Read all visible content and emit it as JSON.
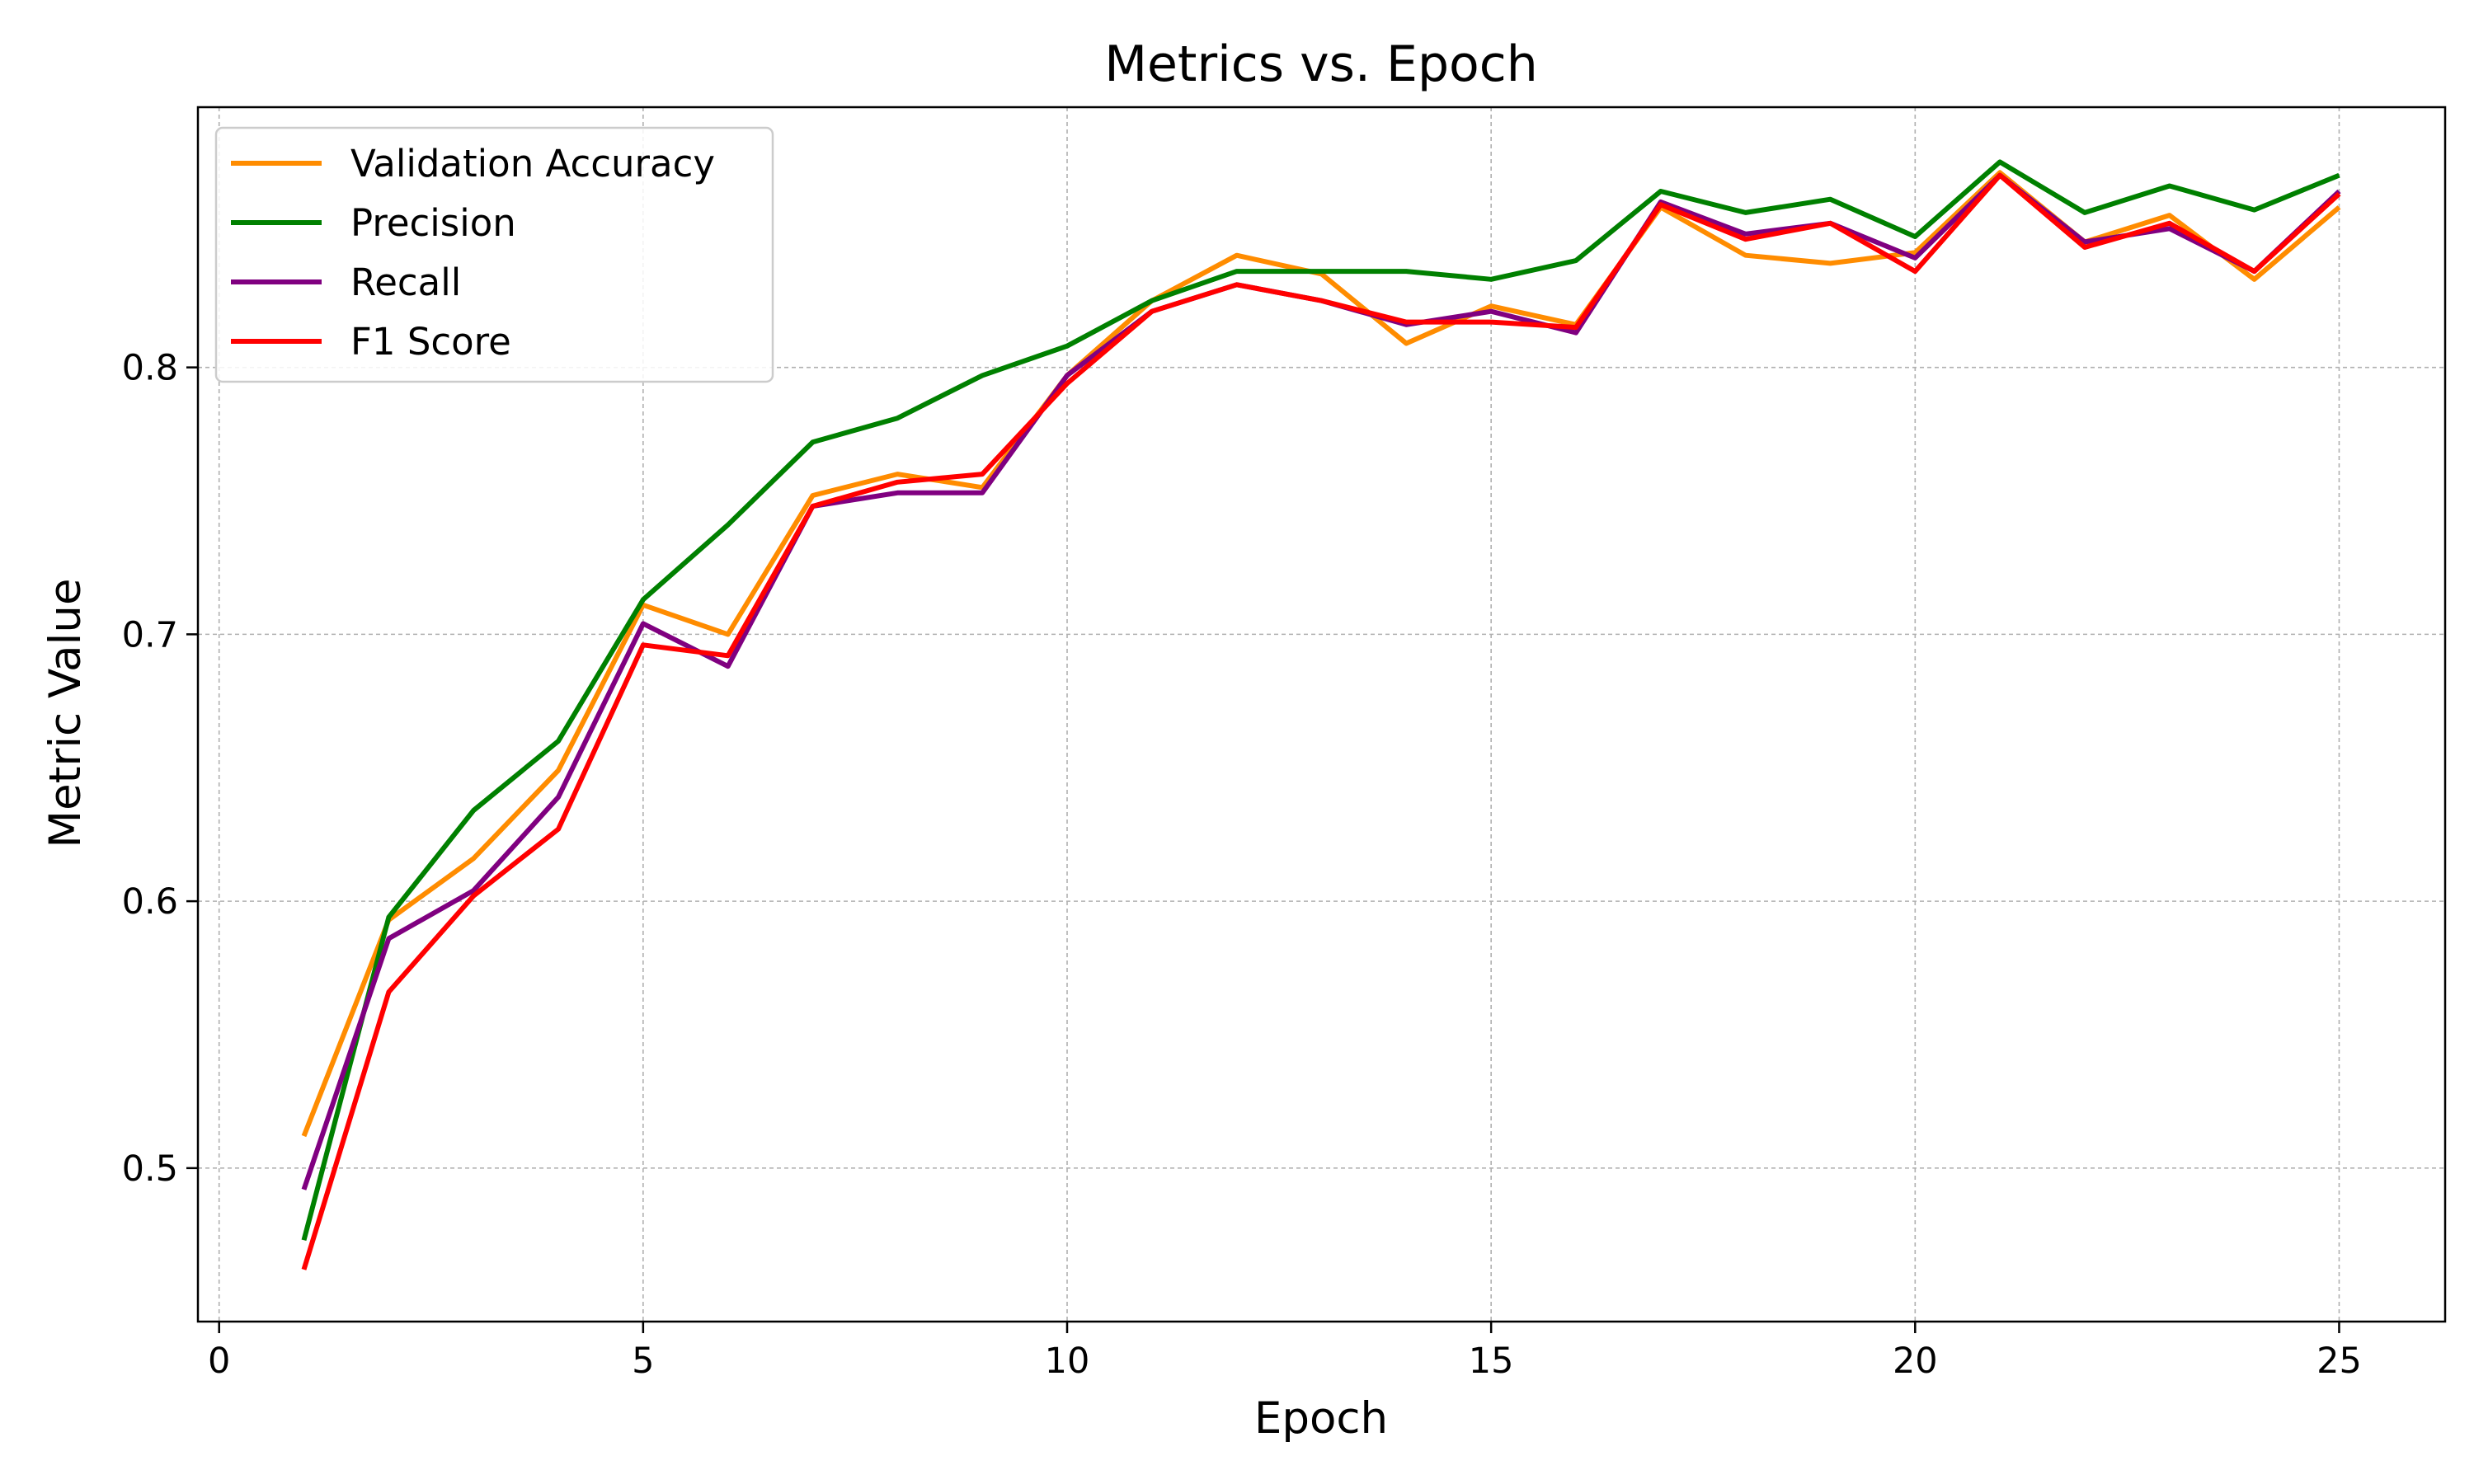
{
  "chart_data": {
    "type": "line",
    "title": "Metrics vs. Epoch",
    "xlabel": "Epoch",
    "ylabel": "Metric Value",
    "xlim": [
      -0.25,
      26.25
    ],
    "ylim": [
      0.4425,
      0.8975
    ],
    "xticks": [
      0,
      5,
      10,
      15,
      20,
      25
    ],
    "yticks": [
      0.5,
      0.6,
      0.7,
      0.8
    ],
    "xtick_labels": [
      "0",
      "5",
      "10",
      "15",
      "20",
      "25"
    ],
    "ytick_labels": [
      "0.5",
      "0.6",
      "0.7",
      "0.8"
    ],
    "grid": true,
    "legend_position": "top-left",
    "x": [
      1,
      2,
      3,
      4,
      5,
      6,
      7,
      8,
      9,
      10,
      11,
      12,
      13,
      14,
      15,
      16,
      17,
      18,
      19,
      20,
      21,
      22,
      23,
      24,
      25
    ],
    "series": [
      {
        "name": "Validation Accuracy",
        "color": "#ff8c00",
        "values": [
          0.512,
          0.593,
          0.616,
          0.649,
          0.711,
          0.7,
          0.752,
          0.76,
          0.755,
          0.797,
          0.825,
          0.842,
          0.835,
          0.809,
          0.823,
          0.816,
          0.86,
          0.842,
          0.839,
          0.843,
          0.873,
          0.847,
          0.857,
          0.833,
          0.86
        ]
      },
      {
        "name": "Precision",
        "color": "#008000",
        "values": [
          0.473,
          0.594,
          0.634,
          0.66,
          0.713,
          0.741,
          0.772,
          0.781,
          0.797,
          0.808,
          0.825,
          0.836,
          0.836,
          0.836,
          0.833,
          0.84,
          0.866,
          0.858,
          0.863,
          0.849,
          0.877,
          0.858,
          0.868,
          0.859,
          0.872
        ]
      },
      {
        "name": "Recall",
        "color": "#800080",
        "values": [
          0.492,
          0.586,
          0.604,
          0.639,
          0.704,
          0.688,
          0.748,
          0.753,
          0.753,
          0.797,
          0.821,
          0.831,
          0.825,
          0.816,
          0.821,
          0.813,
          0.862,
          0.85,
          0.854,
          0.841,
          0.872,
          0.847,
          0.852,
          0.836,
          0.866
        ]
      },
      {
        "name": "F1 Score",
        "color": "#ff0000",
        "values": [
          0.462,
          0.566,
          0.602,
          0.627,
          0.696,
          0.692,
          0.748,
          0.757,
          0.76,
          0.794,
          0.821,
          0.831,
          0.825,
          0.817,
          0.817,
          0.815,
          0.861,
          0.848,
          0.854,
          0.836,
          0.872,
          0.845,
          0.854,
          0.836,
          0.865
        ]
      }
    ]
  }
}
